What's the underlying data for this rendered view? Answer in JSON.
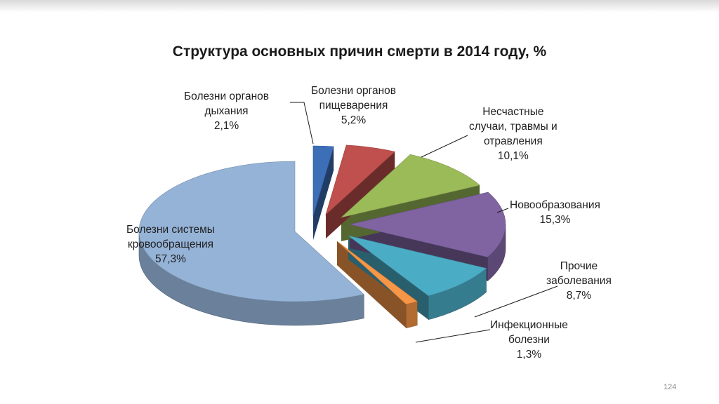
{
  "page_number": "124",
  "chart_data": {
    "type": "pie",
    "title": "Структура  основных причин смерти в 2014 году, %",
    "unit": "%",
    "slices": [
      {
        "label_lines": [
          "Болезни органов",
          "дыхания"
        ],
        "value": 2.1,
        "value_label": "2,1%",
        "color": "#3d6fb8"
      },
      {
        "label_lines": [
          "Болезни органов",
          "пищеварения"
        ],
        "value": 5.2,
        "value_label": "5,2%",
        "color": "#c0504d"
      },
      {
        "label_lines": [
          "Несчастные",
          "случаи, травмы и",
          "отравления"
        ],
        "value": 10.1,
        "value_label": "10,1%",
        "color": "#9bbb59"
      },
      {
        "label_lines": [
          "Новообразования"
        ],
        "value": 15.3,
        "value_label": "15,3%",
        "color": "#8064a2"
      },
      {
        "label_lines": [
          "Прочие",
          "заболевания"
        ],
        "value": 8.7,
        "value_label": "8,7%",
        "color": "#4bacc6"
      },
      {
        "label_lines": [
          "Инфекционные",
          "болезни"
        ],
        "value": 1.3,
        "value_label": "1,3%",
        "color": "#f79646"
      },
      {
        "label_lines": [
          "Болезни системы",
          "кровообращения"
        ],
        "value": 57.3,
        "value_label": "57,3%",
        "color": "#95b3d7"
      }
    ]
  }
}
